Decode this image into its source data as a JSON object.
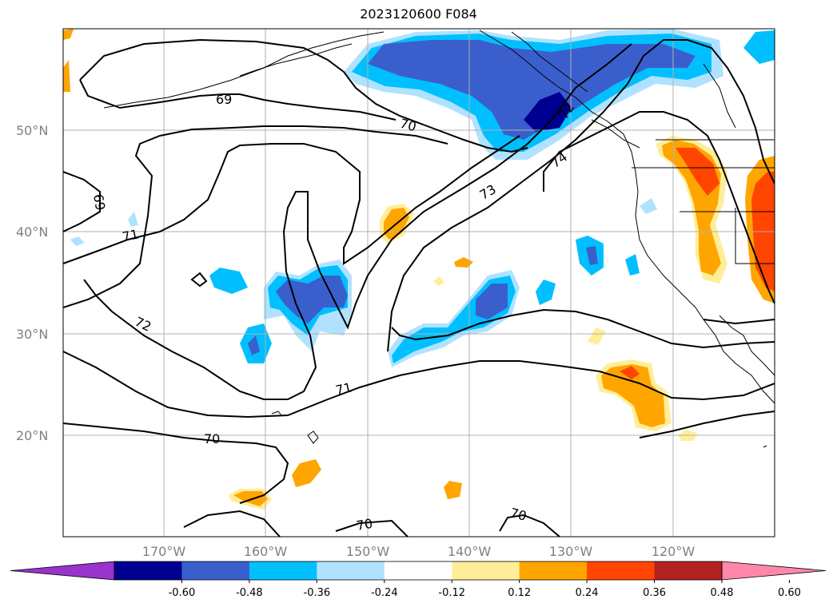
{
  "title": "2023120600 F084",
  "lat_labels": [
    "50°N",
    "40°N",
    "30°N",
    "20°N"
  ],
  "lon_labels": [
    "170°W",
    "160°W",
    "150°W",
    "140°W",
    "130°W",
    "120°W"
  ],
  "contour_labels": [
    "69",
    "69",
    "70",
    "70",
    "70",
    "70",
    "71",
    "71",
    "72",
    "72",
    "73",
    "74"
  ],
  "colorbar": {
    "ticks": [
      "-0.60",
      "-0.48",
      "-0.36",
      "-0.24",
      "-0.12",
      "0.12",
      "0.24",
      "0.36",
      "0.48",
      "0.60"
    ],
    "colors": [
      "#9933cc",
      "#000090",
      "#3a5fcd",
      "#00bfff",
      "#b0e2ff",
      "#ffffff",
      "#ffee99",
      "#ffa500",
      "#ff4500",
      "#b22222",
      "#ff88aa"
    ]
  },
  "legend": {
    "colors_shaded": {
      "strong_neg": "#3a5fcd",
      "neg": "#00bfff",
      "weak_neg": "#b0e2ff",
      "weak_pos": "#ffee99",
      "pos": "#ffa500",
      "strong_pos": "#ff4500",
      "darkest_neg": "#000090"
    }
  }
}
